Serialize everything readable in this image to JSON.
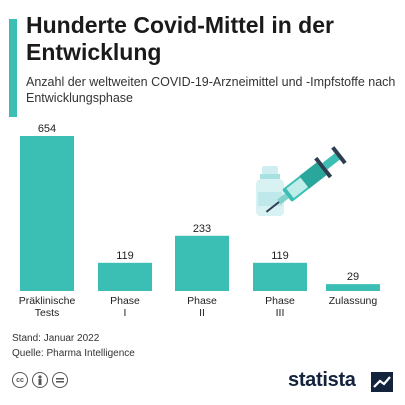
{
  "header": {
    "title": "Hunderte Covid-Mittel in der Entwicklung",
    "subtitle": "Anzahl der weltweiten COVID-19-Arzneimittel und -Impfstoffe nach Entwicklungsphase"
  },
  "chart_data": {
    "type": "bar",
    "categories": [
      "Präklinische Tests",
      "Phase I",
      "Phase II",
      "Phase III",
      "Zulassung"
    ],
    "values": [
      654,
      119,
      233,
      119,
      29
    ],
    "ylim": [
      0,
      654
    ],
    "grid": false,
    "bar_color": "#3bbfb4",
    "value_labels": [
      "654",
      "119",
      "233",
      "119",
      "29"
    ]
  },
  "footer": {
    "stand": "Stand: Januar 2022",
    "quelle": "Quelle: Pharma Intelligence",
    "icons": [
      "cc-icon",
      "person-icon",
      "equals-icon"
    ],
    "brand": "statista"
  },
  "colors": {
    "accent": "#3bbfb4",
    "brand": "#14233c"
  }
}
